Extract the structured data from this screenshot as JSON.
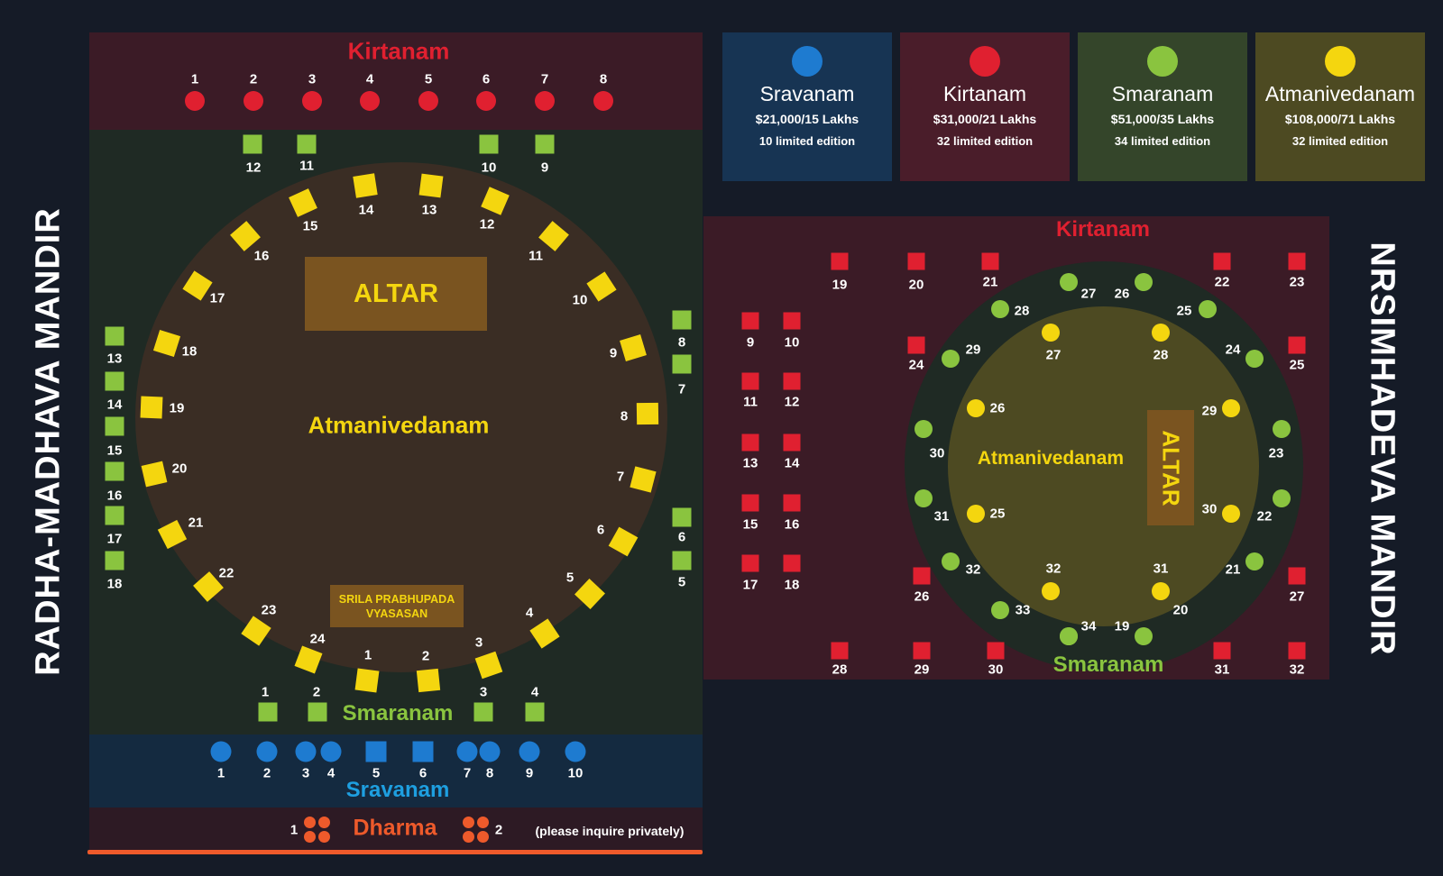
{
  "left_title": "RADHA-MADHAVA MANDIR",
  "right_title": "NRSIMHADEVA MANDIR",
  "colors": {
    "kirtanam": "#e02030",
    "sravanam": "#1e7bd0",
    "smaranam": "#8ac43f",
    "atmanivedanam": "#f4d60f",
    "dharma": "#ee5a2b"
  },
  "legend": [
    {
      "name": "Sravanam",
      "price": "$21,000/15 Lakhs",
      "limit": "10 limited edition",
      "color": "#1e7bd0",
      "bg": "#173453"
    },
    {
      "name": "Kirtanam",
      "price": "$31,000/21 Lakhs",
      "limit": "32 limited edition",
      "color": "#e02030",
      "bg": "#4a1d2a"
    },
    {
      "name": "Smaranam",
      "price": "$51,000/35 Lakhs",
      "limit": "34 limited edition",
      "color": "#8ac43f",
      "bg": "#34452a"
    },
    {
      "name": "Atmanivedanam",
      "price": "$108,000/71 Lakhs",
      "limit": "32 limited edition",
      "color": "#f4d60f",
      "bg": "#4d4a22"
    }
  ],
  "left": {
    "kirtanam_label": "Kirtanam",
    "smaranam_label": "Smaranam",
    "atmanivedanam_label": "Atmanivedanam",
    "sravanam_label": "Sravanam",
    "altar": "ALTAR",
    "vyasasan_line1": "SRILA PRABHUPADA",
    "vyasasan_line2": "VYASASAN",
    "dharma_label": "Dharma",
    "dharma_seat1": "1",
    "dharma_seat2": "2",
    "dharma_note": "(please inquire privately)"
  },
  "right": {
    "kirtanam_label": "Kirtanam",
    "smaranam_label": "Smaranam",
    "atmanivedanam_label": "Atmanivedanam",
    "altar": "ALTAR"
  }
}
